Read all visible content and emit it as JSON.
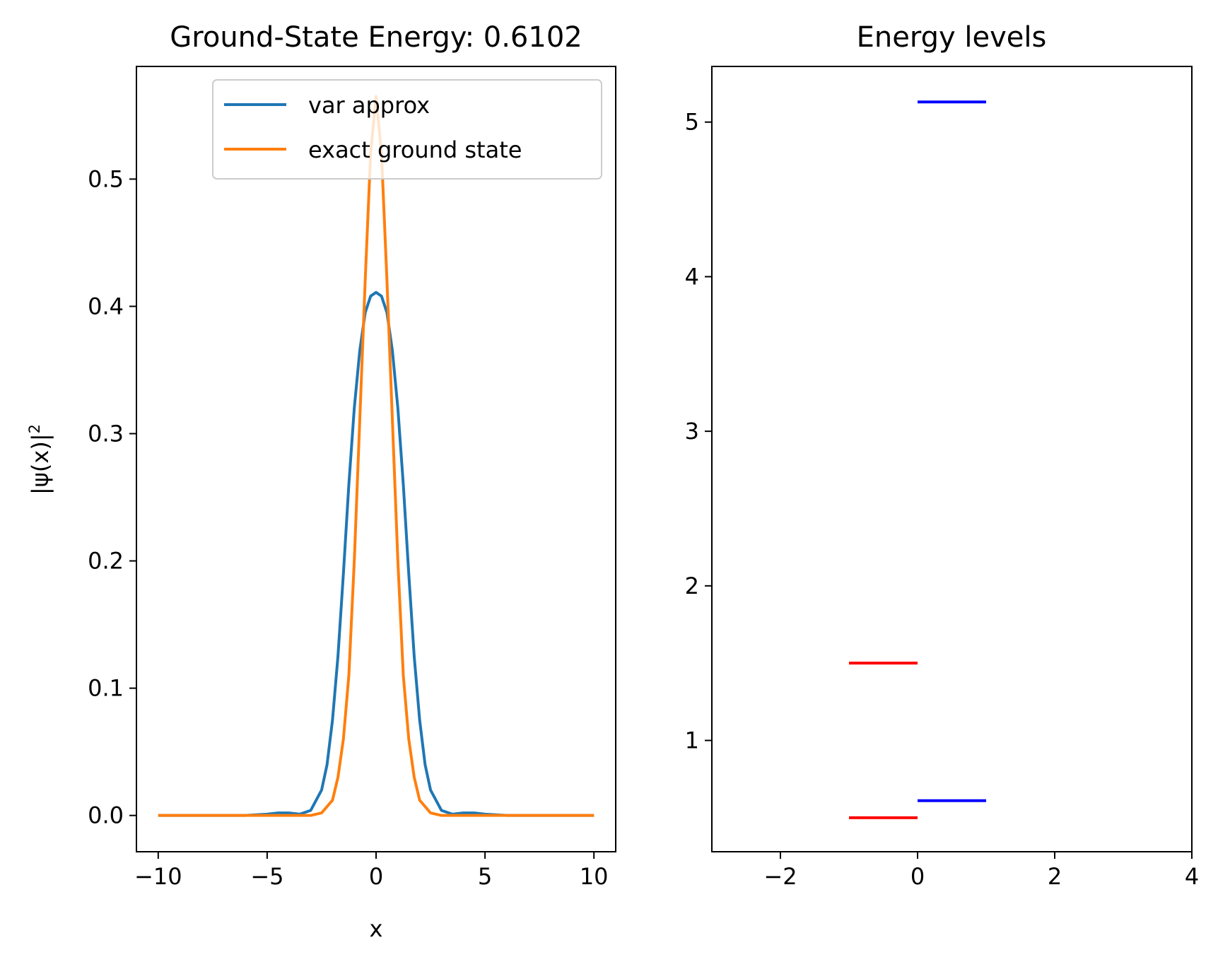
{
  "chart_data": [
    {
      "type": "line",
      "title": "Ground-State Energy: 0.6102",
      "xlabel": "x",
      "ylabel_base": "|ψ(x)|",
      "ylabel_exponent": "2",
      "xlim": [
        -11,
        11
      ],
      "ylim": [
        -0.0285,
        0.5885
      ],
      "x_ticks": [
        -10,
        -5,
        0,
        5,
        10
      ],
      "x_tick_labels": [
        "−10",
        "−5",
        "0",
        "5",
        "10"
      ],
      "y_ticks": [
        0.0,
        0.1,
        0.2,
        0.3,
        0.4,
        0.5
      ],
      "y_tick_labels": [
        "0.0",
        "0.1",
        "0.2",
        "0.3",
        "0.4",
        "0.5"
      ],
      "grid": false,
      "legend_position": "top-right",
      "series": [
        {
          "name": "var approx",
          "color": "#1f77b4",
          "x": [
            -10,
            -6,
            -5,
            -4.5,
            -4,
            -3.5,
            -3,
            -2.5,
            -2.25,
            -2,
            -1.75,
            -1.5,
            -1.25,
            -1,
            -0.75,
            -0.5,
            -0.25,
            0,
            0.25,
            0.5,
            0.75,
            1,
            1.25,
            1.5,
            1.75,
            2,
            2.25,
            2.5,
            3,
            3.5,
            4,
            4.5,
            5,
            6,
            10
          ],
          "y": [
            0,
            0,
            0.001,
            0.002,
            0.002,
            0.001,
            0.004,
            0.02,
            0.04,
            0.075,
            0.125,
            0.19,
            0.26,
            0.32,
            0.365,
            0.395,
            0.408,
            0.411,
            0.408,
            0.395,
            0.365,
            0.32,
            0.26,
            0.19,
            0.125,
            0.075,
            0.04,
            0.02,
            0.004,
            0.001,
            0.002,
            0.002,
            0.001,
            0,
            0
          ]
        },
        {
          "name": "exact ground state",
          "color": "#ff7f0e",
          "x": [
            -10,
            -3,
            -2.5,
            -2,
            -1.75,
            -1.5,
            -1.25,
            -1,
            -0.75,
            -0.5,
            -0.25,
            0,
            0.25,
            0.5,
            0.75,
            1,
            1.25,
            1.5,
            1.75,
            2,
            2.5,
            3,
            10
          ],
          "y": [
            0,
            0,
            0.002,
            0.012,
            0.03,
            0.06,
            0.11,
            0.2,
            0.31,
            0.42,
            0.52,
            0.565,
            0.52,
            0.42,
            0.31,
            0.2,
            0.11,
            0.06,
            0.03,
            0.012,
            0.002,
            0,
            0
          ]
        }
      ]
    },
    {
      "type": "line",
      "title": "Energy levels",
      "xlim": [
        -3,
        4
      ],
      "ylim": [
        0.28,
        5.36
      ],
      "x_ticks": [
        -2,
        0,
        2,
        4
      ],
      "x_tick_labels": [
        "−2",
        "0",
        "2",
        "4"
      ],
      "y_ticks": [
        1,
        2,
        3,
        4,
        5
      ],
      "y_tick_labels": [
        "1",
        "2",
        "3",
        "4",
        "5"
      ],
      "grid": false,
      "segments": [
        {
          "x": [
            -1,
            0
          ],
          "y": 0.5,
          "color": "#ff0000"
        },
        {
          "x": [
            -1,
            0
          ],
          "y": 1.5,
          "color": "#ff0000"
        },
        {
          "x": [
            0,
            1
          ],
          "y": 0.6102,
          "color": "#0000ff"
        },
        {
          "x": [
            0,
            1
          ],
          "y": 5.13,
          "color": "#0000ff"
        }
      ]
    }
  ]
}
